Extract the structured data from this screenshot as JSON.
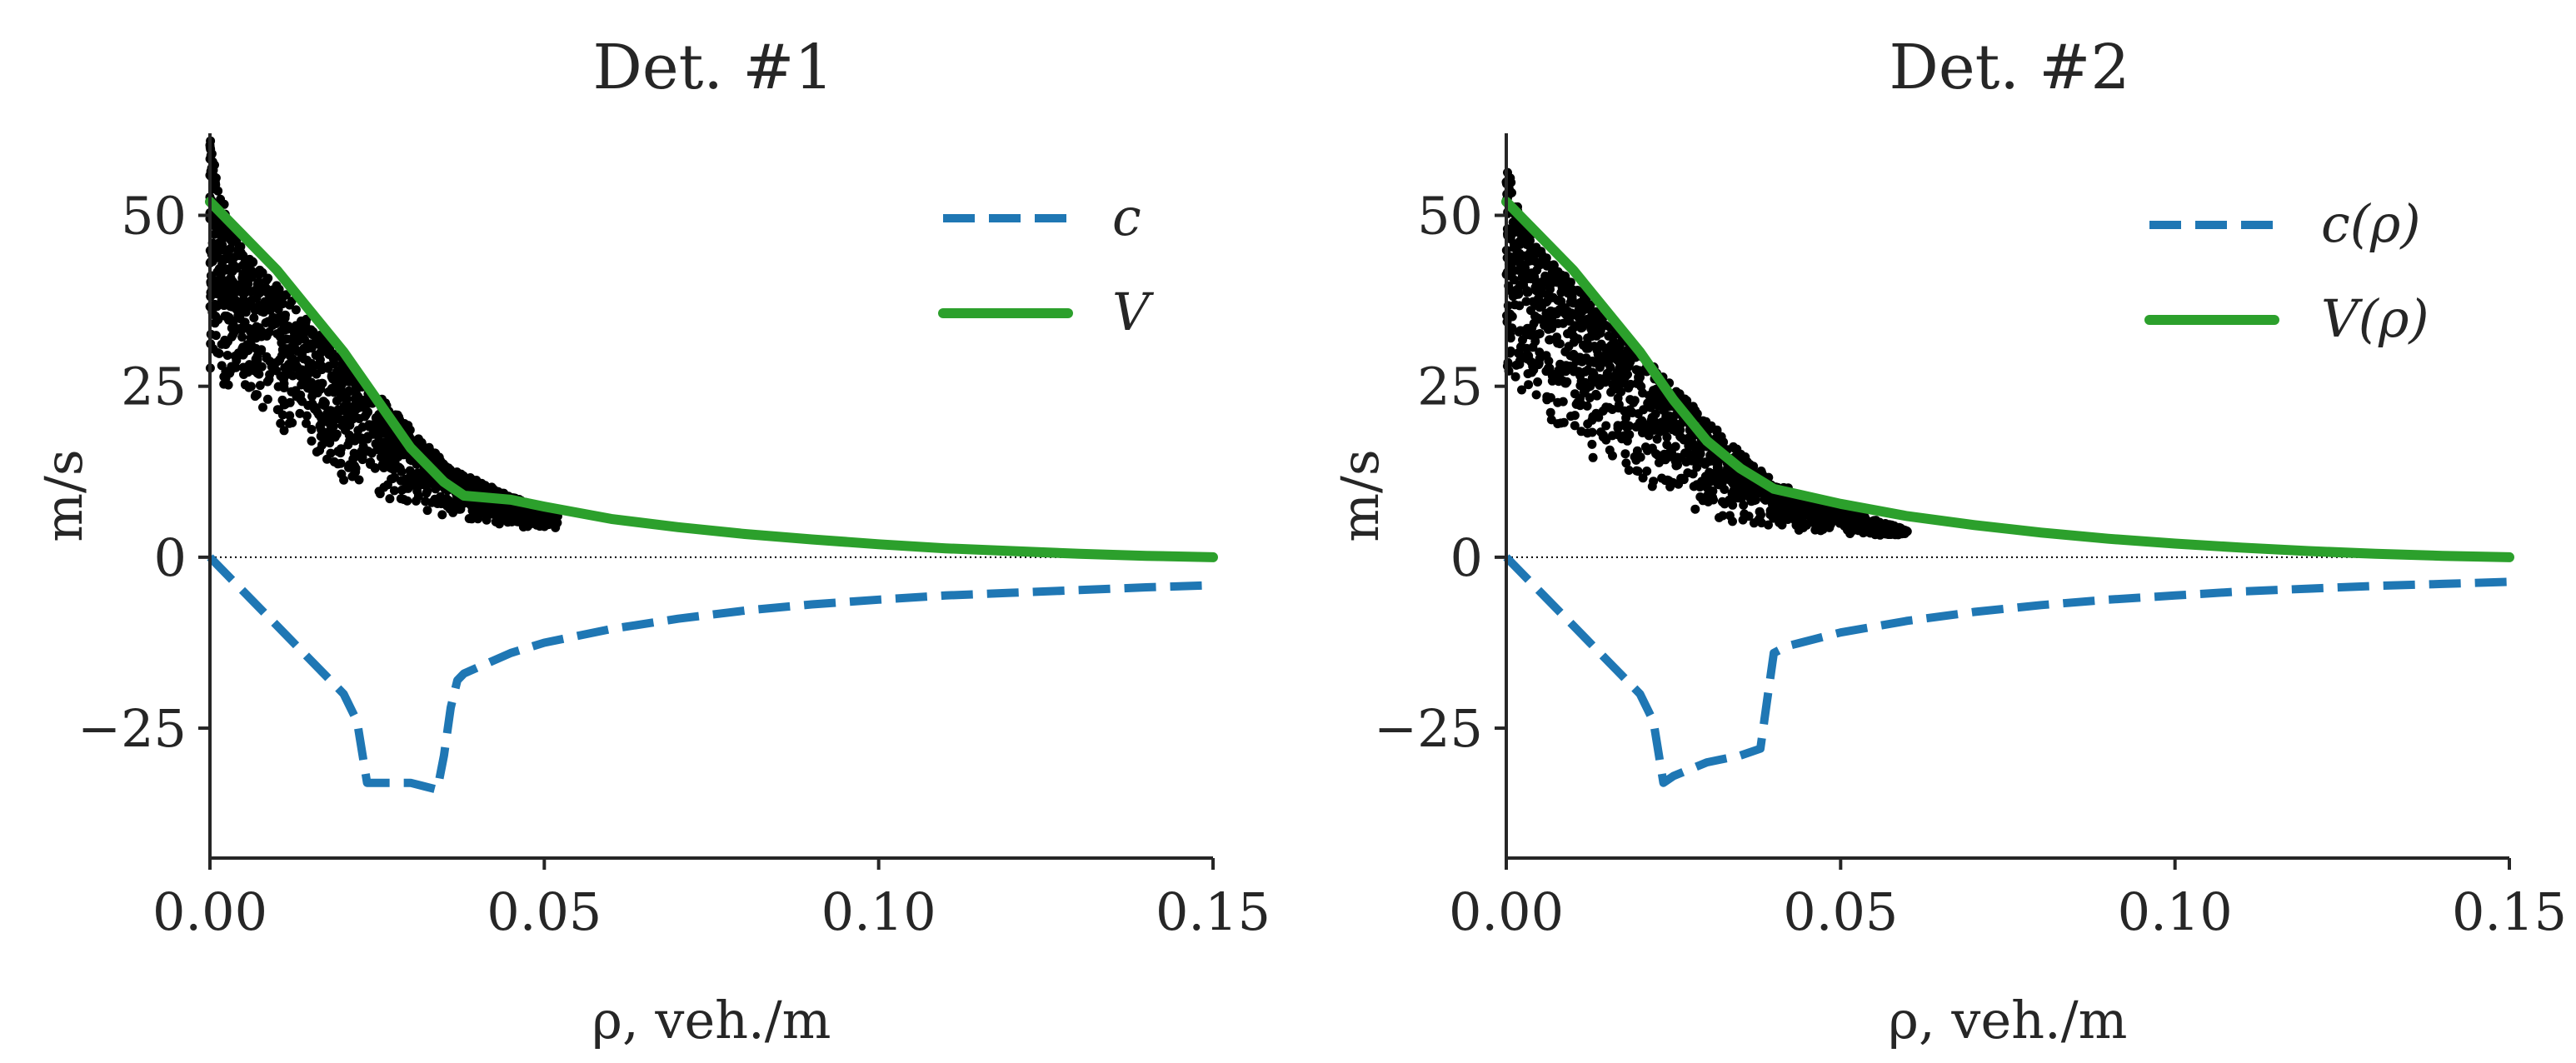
{
  "chart_data": [
    {
      "type": "line",
      "title": "Det. #1",
      "xlabel": "ρ, veh./m",
      "ylabel": "m/s",
      "xlim": [
        0,
        0.15
      ],
      "ylim": [
        -44,
        62
      ],
      "xticks": [
        0.0,
        0.05,
        0.1,
        0.15
      ],
      "xtick_labels": [
        "0.00",
        "0.05",
        "0.10",
        "0.15"
      ],
      "yticks": [
        -25,
        0,
        25,
        50
      ],
      "ytick_labels": [
        "−25",
        "0",
        "25",
        "50"
      ],
      "zero_line": true,
      "legend": {
        "position": "upper right",
        "entries": [
          "c",
          "V"
        ]
      },
      "series": [
        {
          "name": "c",
          "color": "#1f77b4",
          "style": "dashed",
          "x": [
            0.0,
            0.005,
            0.01,
            0.015,
            0.02,
            0.022,
            0.0235,
            0.025,
            0.03,
            0.034,
            0.035,
            0.036,
            0.037,
            0.038,
            0.045,
            0.05,
            0.06,
            0.07,
            0.08,
            0.09,
            0.1,
            0.11,
            0.12,
            0.13,
            0.14,
            0.15
          ],
          "y": [
            0,
            -5,
            -10,
            -15,
            -20,
            -24,
            -33,
            -33,
            -33,
            -34,
            -29,
            -22,
            -18,
            -17,
            -14,
            -12.5,
            -10.5,
            -9,
            -7.8,
            -6.9,
            -6.2,
            -5.6,
            -5.2,
            -4.8,
            -4.4,
            -4.1
          ]
        },
        {
          "name": "V",
          "color": "#2ca02c",
          "style": "solid",
          "x": [
            0.0,
            0.005,
            0.01,
            0.015,
            0.02,
            0.025,
            0.03,
            0.035,
            0.038,
            0.045,
            0.05,
            0.06,
            0.07,
            0.08,
            0.09,
            0.1,
            0.11,
            0.12,
            0.13,
            0.14,
            0.15
          ],
          "y": [
            52,
            47,
            42,
            36,
            30,
            23,
            16,
            11,
            9,
            8.4,
            7.4,
            5.6,
            4.4,
            3.4,
            2.6,
            1.9,
            1.3,
            0.9,
            0.5,
            0.2,
            0
          ]
        }
      ],
      "scatter": {
        "color": "#000000",
        "x_range": [
          0.0,
          0.052
        ],
        "upper": [
          [
            0.0,
            62
          ],
          [
            0.002,
            52
          ],
          [
            0.005,
            45
          ],
          [
            0.01,
            40
          ],
          [
            0.02,
            29
          ],
          [
            0.03,
            19
          ],
          [
            0.036,
            13
          ],
          [
            0.045,
            9
          ],
          [
            0.052,
            6
          ]
        ],
        "lower": [
          [
            0.0,
            26
          ],
          [
            0.005,
            23
          ],
          [
            0.008,
            20
          ],
          [
            0.012,
            17
          ],
          [
            0.02,
            11
          ],
          [
            0.03,
            7
          ],
          [
            0.04,
            5
          ],
          [
            0.052,
            4
          ]
        ]
      }
    },
    {
      "type": "line",
      "title": "Det. #2",
      "xlabel": "ρ, veh./m",
      "ylabel": "m/s",
      "xlim": [
        0,
        0.15
      ],
      "ylim": [
        -44,
        62
      ],
      "xticks": [
        0.0,
        0.05,
        0.1,
        0.15
      ],
      "xtick_labels": [
        "0.00",
        "0.05",
        "0.10",
        "0.15"
      ],
      "yticks": [
        -25,
        0,
        25,
        50
      ],
      "ytick_labels": [
        "−25",
        "0",
        "25",
        "50"
      ],
      "zero_line": true,
      "legend": {
        "position": "upper right",
        "entries": [
          "c(ρ)",
          "V(ρ)"
        ]
      },
      "series": [
        {
          "name": "c(ρ)",
          "color": "#1f77b4",
          "style": "dashed",
          "x": [
            0.0,
            0.005,
            0.01,
            0.015,
            0.02,
            0.022,
            0.0235,
            0.025,
            0.03,
            0.035,
            0.038,
            0.039,
            0.04,
            0.042,
            0.05,
            0.06,
            0.07,
            0.08,
            0.09,
            0.1,
            0.11,
            0.12,
            0.13,
            0.14,
            0.15
          ],
          "y": [
            0,
            -5,
            -10,
            -15,
            -20,
            -24,
            -33,
            -32,
            -30,
            -29,
            -28,
            -21,
            -14,
            -13,
            -11,
            -9.3,
            -8,
            -7,
            -6.2,
            -5.6,
            -5,
            -4.6,
            -4.2,
            -3.9,
            -3.6
          ]
        },
        {
          "name": "V(ρ)",
          "color": "#2ca02c",
          "style": "solid",
          "x": [
            0.0,
            0.005,
            0.01,
            0.015,
            0.02,
            0.025,
            0.03,
            0.035,
            0.04,
            0.045,
            0.05,
            0.06,
            0.07,
            0.08,
            0.09,
            0.1,
            0.11,
            0.12,
            0.13,
            0.14,
            0.15
          ],
          "y": [
            52,
            47,
            42,
            36,
            30,
            23,
            17,
            13,
            10,
            8.9,
            7.8,
            6,
            4.7,
            3.6,
            2.7,
            2,
            1.4,
            0.9,
            0.5,
            0.2,
            0
          ]
        }
      ],
      "scatter": {
        "color": "#000000",
        "x_range": [
          0.0,
          0.06
        ],
        "upper": [
          [
            0.0,
            58
          ],
          [
            0.002,
            50
          ],
          [
            0.005,
            45
          ],
          [
            0.01,
            40
          ],
          [
            0.02,
            30
          ],
          [
            0.03,
            20
          ],
          [
            0.04,
            11
          ],
          [
            0.05,
            7
          ],
          [
            0.06,
            4
          ]
        ],
        "lower": [
          [
            0.0,
            25
          ],
          [
            0.005,
            20
          ],
          [
            0.008,
            18
          ],
          [
            0.012,
            15
          ],
          [
            0.02,
            10
          ],
          [
            0.03,
            6
          ],
          [
            0.04,
            4
          ],
          [
            0.06,
            3
          ]
        ]
      }
    }
  ]
}
